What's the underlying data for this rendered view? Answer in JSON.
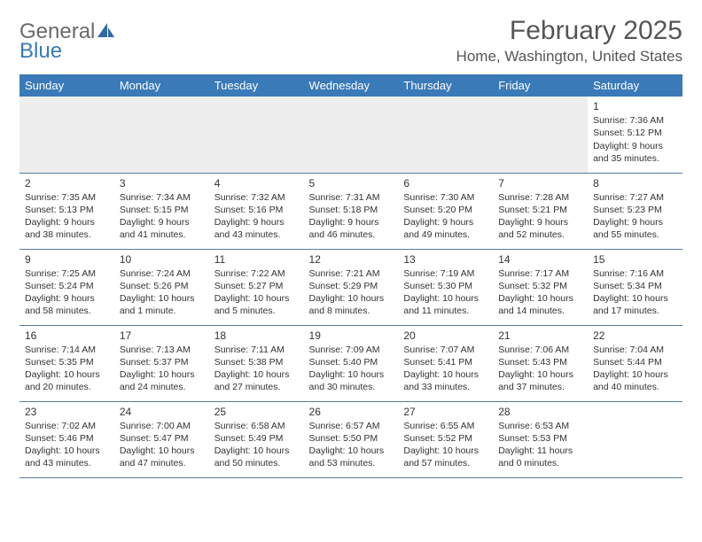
{
  "logo": {
    "text1": "General",
    "text2": "Blue"
  },
  "title": "February 2025",
  "location": "Home, Washington, United States",
  "colors": {
    "header_bg": "#3a7ab8",
    "header_text": "#ffffff",
    "row_border": "#5a7a9a",
    "first_row_bg": "#ededed",
    "body_text": "#333333",
    "logo_gray": "#6a6a6a",
    "logo_blue": "#3a7ab8"
  },
  "day_headers": [
    "Sunday",
    "Monday",
    "Tuesday",
    "Wednesday",
    "Thursday",
    "Friday",
    "Saturday"
  ],
  "weeks": [
    [
      null,
      null,
      null,
      null,
      null,
      null,
      {
        "d": "1",
        "sr": "Sunrise: 7:36 AM",
        "ss": "Sunset: 5:12 PM",
        "dl1": "Daylight: 9 hours",
        "dl2": "and 35 minutes."
      }
    ],
    [
      {
        "d": "2",
        "sr": "Sunrise: 7:35 AM",
        "ss": "Sunset: 5:13 PM",
        "dl1": "Daylight: 9 hours",
        "dl2": "and 38 minutes."
      },
      {
        "d": "3",
        "sr": "Sunrise: 7:34 AM",
        "ss": "Sunset: 5:15 PM",
        "dl1": "Daylight: 9 hours",
        "dl2": "and 41 minutes."
      },
      {
        "d": "4",
        "sr": "Sunrise: 7:32 AM",
        "ss": "Sunset: 5:16 PM",
        "dl1": "Daylight: 9 hours",
        "dl2": "and 43 minutes."
      },
      {
        "d": "5",
        "sr": "Sunrise: 7:31 AM",
        "ss": "Sunset: 5:18 PM",
        "dl1": "Daylight: 9 hours",
        "dl2": "and 46 minutes."
      },
      {
        "d": "6",
        "sr": "Sunrise: 7:30 AM",
        "ss": "Sunset: 5:20 PM",
        "dl1": "Daylight: 9 hours",
        "dl2": "and 49 minutes."
      },
      {
        "d": "7",
        "sr": "Sunrise: 7:28 AM",
        "ss": "Sunset: 5:21 PM",
        "dl1": "Daylight: 9 hours",
        "dl2": "and 52 minutes."
      },
      {
        "d": "8",
        "sr": "Sunrise: 7:27 AM",
        "ss": "Sunset: 5:23 PM",
        "dl1": "Daylight: 9 hours",
        "dl2": "and 55 minutes."
      }
    ],
    [
      {
        "d": "9",
        "sr": "Sunrise: 7:25 AM",
        "ss": "Sunset: 5:24 PM",
        "dl1": "Daylight: 9 hours",
        "dl2": "and 58 minutes."
      },
      {
        "d": "10",
        "sr": "Sunrise: 7:24 AM",
        "ss": "Sunset: 5:26 PM",
        "dl1": "Daylight: 10 hours",
        "dl2": "and 1 minute."
      },
      {
        "d": "11",
        "sr": "Sunrise: 7:22 AM",
        "ss": "Sunset: 5:27 PM",
        "dl1": "Daylight: 10 hours",
        "dl2": "and 5 minutes."
      },
      {
        "d": "12",
        "sr": "Sunrise: 7:21 AM",
        "ss": "Sunset: 5:29 PM",
        "dl1": "Daylight: 10 hours",
        "dl2": "and 8 minutes."
      },
      {
        "d": "13",
        "sr": "Sunrise: 7:19 AM",
        "ss": "Sunset: 5:30 PM",
        "dl1": "Daylight: 10 hours",
        "dl2": "and 11 minutes."
      },
      {
        "d": "14",
        "sr": "Sunrise: 7:17 AM",
        "ss": "Sunset: 5:32 PM",
        "dl1": "Daylight: 10 hours",
        "dl2": "and 14 minutes."
      },
      {
        "d": "15",
        "sr": "Sunrise: 7:16 AM",
        "ss": "Sunset: 5:34 PM",
        "dl1": "Daylight: 10 hours",
        "dl2": "and 17 minutes."
      }
    ],
    [
      {
        "d": "16",
        "sr": "Sunrise: 7:14 AM",
        "ss": "Sunset: 5:35 PM",
        "dl1": "Daylight: 10 hours",
        "dl2": "and 20 minutes."
      },
      {
        "d": "17",
        "sr": "Sunrise: 7:13 AM",
        "ss": "Sunset: 5:37 PM",
        "dl1": "Daylight: 10 hours",
        "dl2": "and 24 minutes."
      },
      {
        "d": "18",
        "sr": "Sunrise: 7:11 AM",
        "ss": "Sunset: 5:38 PM",
        "dl1": "Daylight: 10 hours",
        "dl2": "and 27 minutes."
      },
      {
        "d": "19",
        "sr": "Sunrise: 7:09 AM",
        "ss": "Sunset: 5:40 PM",
        "dl1": "Daylight: 10 hours",
        "dl2": "and 30 minutes."
      },
      {
        "d": "20",
        "sr": "Sunrise: 7:07 AM",
        "ss": "Sunset: 5:41 PM",
        "dl1": "Daylight: 10 hours",
        "dl2": "and 33 minutes."
      },
      {
        "d": "21",
        "sr": "Sunrise: 7:06 AM",
        "ss": "Sunset: 5:43 PM",
        "dl1": "Daylight: 10 hours",
        "dl2": "and 37 minutes."
      },
      {
        "d": "22",
        "sr": "Sunrise: 7:04 AM",
        "ss": "Sunset: 5:44 PM",
        "dl1": "Daylight: 10 hours",
        "dl2": "and 40 minutes."
      }
    ],
    [
      {
        "d": "23",
        "sr": "Sunrise: 7:02 AM",
        "ss": "Sunset: 5:46 PM",
        "dl1": "Daylight: 10 hours",
        "dl2": "and 43 minutes."
      },
      {
        "d": "24",
        "sr": "Sunrise: 7:00 AM",
        "ss": "Sunset: 5:47 PM",
        "dl1": "Daylight: 10 hours",
        "dl2": "and 47 minutes."
      },
      {
        "d": "25",
        "sr": "Sunrise: 6:58 AM",
        "ss": "Sunset: 5:49 PM",
        "dl1": "Daylight: 10 hours",
        "dl2": "and 50 minutes."
      },
      {
        "d": "26",
        "sr": "Sunrise: 6:57 AM",
        "ss": "Sunset: 5:50 PM",
        "dl1": "Daylight: 10 hours",
        "dl2": "and 53 minutes."
      },
      {
        "d": "27",
        "sr": "Sunrise: 6:55 AM",
        "ss": "Sunset: 5:52 PM",
        "dl1": "Daylight: 10 hours",
        "dl2": "and 57 minutes."
      },
      {
        "d": "28",
        "sr": "Sunrise: 6:53 AM",
        "ss": "Sunset: 5:53 PM",
        "dl1": "Daylight: 11 hours",
        "dl2": "and 0 minutes."
      },
      null
    ]
  ]
}
